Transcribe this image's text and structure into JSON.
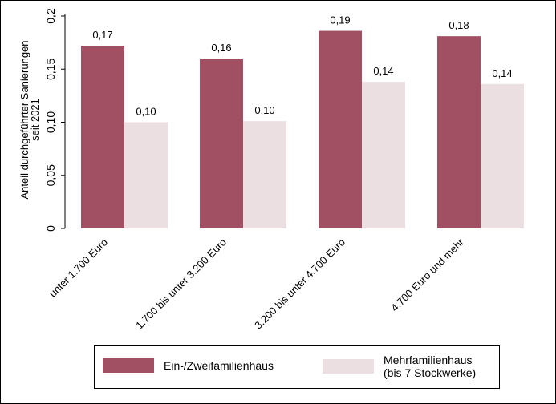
{
  "chart_data": {
    "type": "bar",
    "ylabel": "Anteil durchgeführter Sanierungen\nseit 2021",
    "xlabel": "",
    "ylim": [
      0,
      0.2
    ],
    "yticks": [
      {
        "value": 0,
        "label": "0"
      },
      {
        "value": 0.05,
        "label": "0,05"
      },
      {
        "value": 0.1,
        "label": "0,10"
      },
      {
        "value": 0.15,
        "label": "0,15"
      },
      {
        "value": 0.2,
        "label": "0,2"
      }
    ],
    "categories": [
      "unter 1.700 Euro",
      "1.700 bis unter 3.200 Euro",
      "3.200 bis unter 4.700 Euro",
      "4.700 Euro und mehr"
    ],
    "series": [
      {
        "name": "Ein-/Zweifamilienhaus",
        "color": "#a05062",
        "values": [
          0.172,
          0.16,
          0.186,
          0.181
        ],
        "labels": [
          "0,17",
          "0,16",
          "0,19",
          "0,18"
        ]
      },
      {
        "name": "Mehrfamilienhaus\n(bis 7 Stockwerke)",
        "color": "#ecdfe2",
        "values": [
          0.1,
          0.101,
          0.138,
          0.136
        ],
        "labels": [
          "0,10",
          "0,10",
          "0,14",
          "0,14"
        ]
      }
    ],
    "grid": false,
    "legend": "bottom"
  }
}
